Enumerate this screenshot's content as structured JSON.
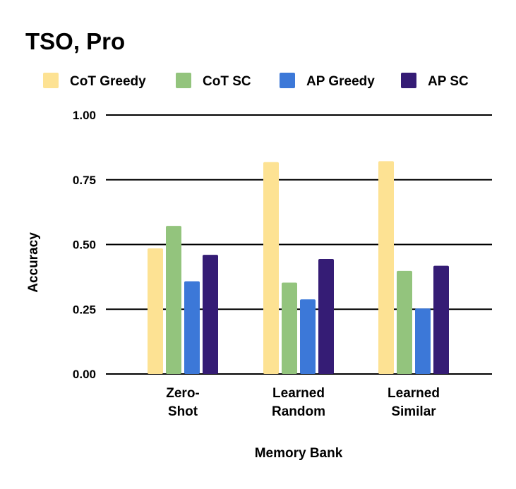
{
  "chart_data": {
    "type": "bar",
    "title": "TSO, Pro",
    "xlabel": "Memory Bank",
    "ylabel": "Accuracy",
    "ylim": [
      0,
      1
    ],
    "yticks": [
      "0.00",
      "0.25",
      "0.50",
      "0.75",
      "1.00"
    ],
    "grid": true,
    "legend_position": "top",
    "categories": [
      [
        "Zero-",
        "Shot"
      ],
      [
        "Learned",
        "Random"
      ],
      [
        "Learned",
        "Similar"
      ]
    ],
    "series": [
      {
        "name": "CoT Greedy",
        "color": "#FDE293",
        "values": [
          0.485,
          0.818,
          0.822
        ]
      },
      {
        "name": "CoT SC",
        "color": "#93C47D",
        "values": [
          0.572,
          0.353,
          0.398
        ]
      },
      {
        "name": "AP Greedy",
        "color": "#3C78D8",
        "values": [
          0.358,
          0.288,
          0.253
        ]
      },
      {
        "name": "AP SC",
        "color": "#351C75",
        "values": [
          0.46,
          0.444,
          0.418
        ]
      }
    ]
  }
}
